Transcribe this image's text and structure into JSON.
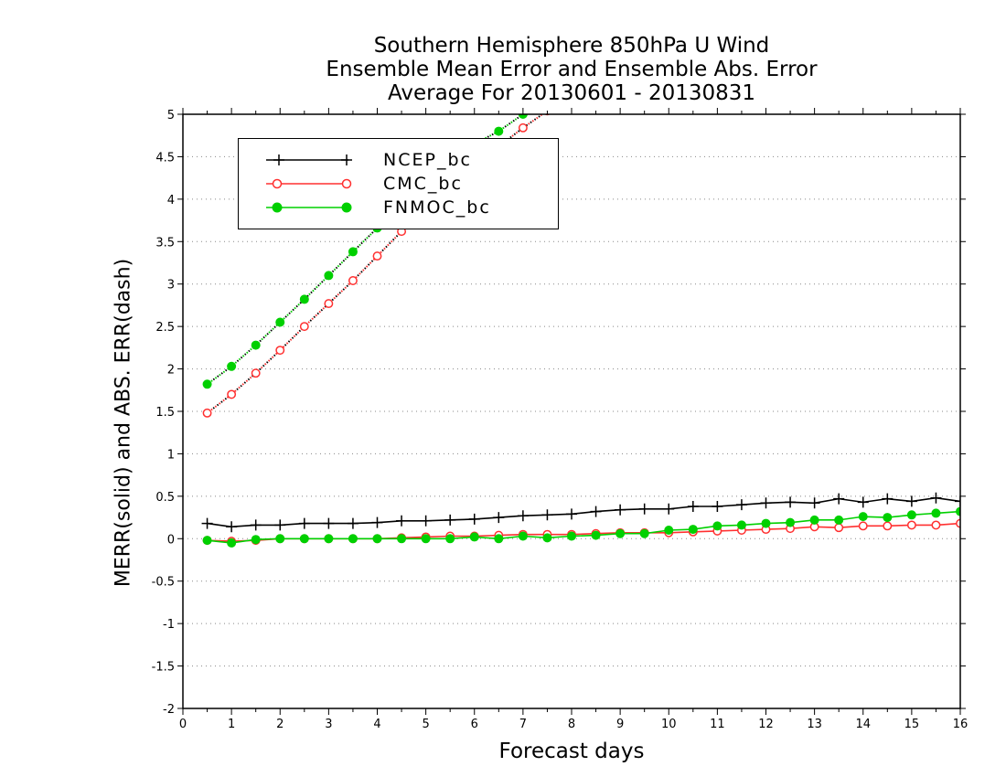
{
  "chart": {
    "title_lines": [
      "Southern Hemisphere 850hPa U Wind",
      "Ensemble Mean Error and Ensemble Abs. Error",
      "Average For 20130601 - 20130831"
    ],
    "xlabel": "Forecast days",
    "ylabel": "MERR(solid) and ABS. ERR(dash)",
    "legend": [
      {
        "label": "NCEP_bc",
        "color": "#000000",
        "marker": "plus"
      },
      {
        "label": "CMC_bc",
        "color": "#ff3030",
        "marker": "open-circle"
      },
      {
        "label": "FNMOC_bc",
        "color": "#00d000",
        "marker": "filled-circle"
      }
    ]
  },
  "chart_data": {
    "type": "line",
    "title": "Southern Hemisphere 850hPa U Wind / Ensemble Mean Error and Ensemble Abs. Error / Average For 20130601 - 20130831",
    "xlabel": "Forecast days",
    "ylabel": "MERR(solid) and ABS. ERR(dash)",
    "xlim": [
      0,
      16
    ],
    "ylim": [
      -2,
      5
    ],
    "xticks": [
      0,
      1,
      2,
      3,
      4,
      5,
      6,
      7,
      8,
      9,
      10,
      11,
      12,
      13,
      14,
      15,
      16
    ],
    "yticks": [
      -2,
      -1.5,
      -1,
      -0.5,
      0,
      0.5,
      1,
      1.5,
      2,
      2.5,
      3,
      3.5,
      4,
      4.5,
      5
    ],
    "ytick_labels": [
      "-2",
      "-1.5",
      "-1",
      "-0.5",
      "0",
      "0.5",
      "1",
      "1.5",
      "2",
      "2.5",
      "3",
      "3.5",
      "4",
      "4.5",
      "5"
    ],
    "grid": "horizontal dotted",
    "legend_position": "top-left",
    "x": [
      0.5,
      1.0,
      1.5,
      2.0,
      2.5,
      3.0,
      3.5,
      4.0,
      4.5,
      5.0,
      5.5,
      6.0,
      6.5,
      7.0,
      7.5,
      8.0,
      8.5,
      9.0,
      9.5,
      10.0,
      10.5,
      11.0,
      11.5,
      12.0,
      12.5,
      13.0,
      13.5,
      14.0,
      14.5,
      15.0,
      15.5,
      16.0
    ],
    "series": [
      {
        "name": "NCEP_bc",
        "kind": "mean error",
        "style": "solid",
        "color": "#000000",
        "marker": "plus",
        "values": [
          0.18,
          0.14,
          0.16,
          0.16,
          0.18,
          0.18,
          0.18,
          0.19,
          0.21,
          0.21,
          0.22,
          0.23,
          0.25,
          0.27,
          0.28,
          0.29,
          0.32,
          0.34,
          0.35,
          0.35,
          0.38,
          0.38,
          0.4,
          0.42,
          0.43,
          0.42,
          0.47,
          0.43,
          0.47,
          0.44,
          0.48,
          0.44
        ]
      },
      {
        "name": "CMC_bc",
        "kind": "mean error",
        "style": "solid",
        "color": "#ff3030",
        "marker": "open-circle",
        "values": [
          -0.02,
          -0.03,
          -0.02,
          0.0,
          0.0,
          0.0,
          0.0,
          0.0,
          0.01,
          0.02,
          0.03,
          0.03,
          0.04,
          0.05,
          0.05,
          0.05,
          0.06,
          0.07,
          0.07,
          0.07,
          0.08,
          0.09,
          0.1,
          0.11,
          0.12,
          0.14,
          0.13,
          0.15,
          0.15,
          0.16,
          0.16,
          0.18
        ]
      },
      {
        "name": "FNMOC_bc",
        "kind": "mean error",
        "style": "solid",
        "color": "#00d000",
        "marker": "filled-circle",
        "values": [
          -0.02,
          -0.05,
          -0.01,
          0.0,
          0.0,
          0.0,
          0.0,
          0.0,
          0.0,
          0.0,
          0.0,
          0.02,
          0.0,
          0.03,
          0.01,
          0.03,
          0.04,
          0.06,
          0.06,
          0.1,
          0.11,
          0.15,
          0.16,
          0.18,
          0.19,
          0.22,
          0.22,
          0.26,
          0.25,
          0.28,
          0.3,
          0.32
        ]
      },
      {
        "name": "CMC_bc",
        "kind": "absolute error",
        "style": "dotted",
        "color": "#ff3030",
        "marker": "open-circle",
        "x": [
          0.5,
          1.0,
          1.5,
          2.0,
          2.5,
          3.0,
          3.5,
          4.0,
          4.5,
          5.0,
          5.5,
          6.0,
          6.5,
          7.0,
          7.5
        ],
        "values": [
          1.48,
          1.7,
          1.95,
          2.22,
          2.5,
          2.77,
          3.04,
          3.33,
          3.62,
          3.9,
          4.15,
          4.4,
          4.62,
          4.84,
          5.04
        ]
      },
      {
        "name": "FNMOC_bc",
        "kind": "absolute error",
        "style": "dotted",
        "color": "#00d000",
        "marker": "filled-circle",
        "x": [
          0.5,
          1.0,
          1.5,
          2.0,
          2.5,
          3.0,
          3.5,
          4.0,
          4.5,
          5.0,
          5.5,
          6.0,
          6.5,
          7.0,
          7.5
        ],
        "values": [
          1.82,
          2.03,
          2.28,
          2.55,
          2.82,
          3.1,
          3.38,
          3.66,
          3.94,
          4.2,
          4.45,
          4.65,
          4.8,
          5.0,
          5.18
        ]
      }
    ]
  }
}
